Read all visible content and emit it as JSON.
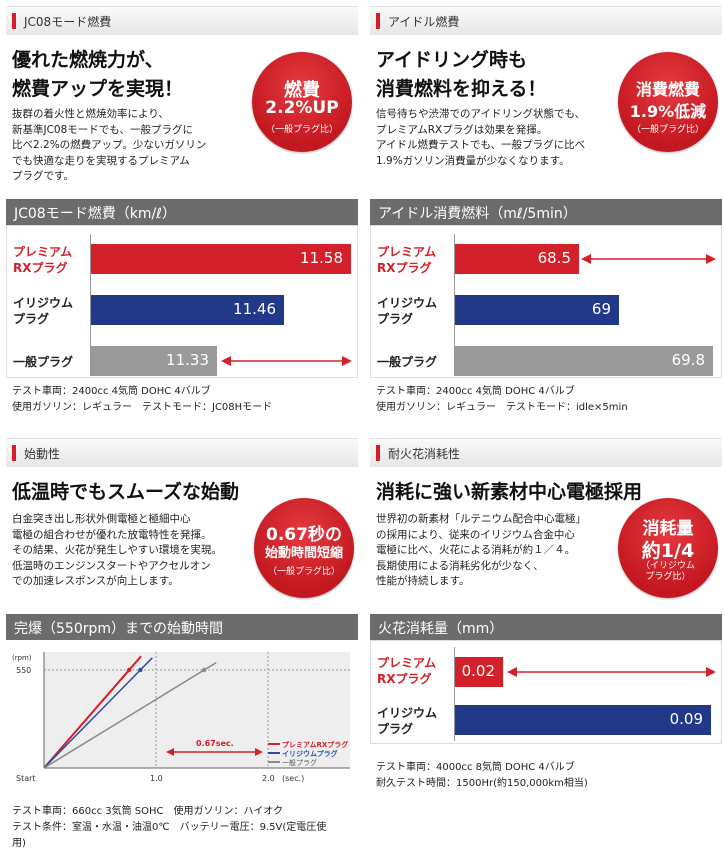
{
  "panels": {
    "p1": {
      "section": "JC08モード燃費",
      "headline": "優れた燃焼力が、\n燃費アップを実現！",
      "body": "抜群の着火性と燃焼効率により、\n新基準JC08モードでも、一般プラグに\n比べ2.2%の燃費アップ。少ないガソリン\nでも快適な走りを実現するプレミアム\nプラグです。",
      "badge": {
        "l1": "燃費",
        "l2": "2.2%UP",
        "sub": "（一般プラグ比）"
      },
      "note": "テスト車両：2400cc 4気筒 DOHC 4バルブ\n使用ガソリン：レギュラー　テストモード：JC08Hモード"
    },
    "p2": {
      "section": "アイドル燃費",
      "headline": "アイドリング時も\n消費燃料を抑える！",
      "body": "信号待ちや渋滞でのアイドリング状態でも、\nプレミアムRXプラグは効果を発揮。\nアイドル燃費テストでも、一般プラグに比べ\n1.9%ガソリン消費量が少なくなります。",
      "badge": {
        "l1": "消費燃費",
        "l2": "1.9%低減",
        "sub": "（一般プラグ比）"
      },
      "note": "テスト車両：2400cc 4気筒 DOHC 4バルブ\n使用ガソリン：レギュラー　テストモード：idle×5min"
    },
    "p3": {
      "section": "始動性",
      "headline": "低温時でもスムーズな始動",
      "body": "白金突き出し形状外側電極と極細中心\n電極の組合わせが優れた放電特性を発揮。\nその結果、火花が発生しやすい環境を実現。\n低温時のエンジンスタートやアクセルオン\nでの加速レスポンスが向上します。",
      "badge": {
        "l1": "0.67秒の",
        "l2": "始動時間短縮",
        "sub": "（一般プラグ比）"
      },
      "note": "テスト車両：660cc 3気筒 SOHC　使用ガソリン：ハイオク\nテスト条件：室温・水温・油温0℃　バッテリー電圧：9.5V(定電圧使\n用)"
    },
    "p4": {
      "section": "耐火花消耗性",
      "headline": "消耗に強い新素材中心電極採用",
      "body": "世界初の新素材「ルテニウム配合中心電極」\nの採用により、従来のイリジウム合金中心\n電極に比べ、火花による消耗が約１／４。\n長期使用による消耗劣化が少なく、\n性能が持続します。",
      "badge": {
        "l1": "消耗量",
        "l2": "約1/4",
        "sub": "（イリジウム\nプラグ比）"
      },
      "note": "テスト車両：4000cc 8気筒 DOHC 4バルブ\n耐久テスト時間：1500Hr(約150,000km相当)"
    }
  },
  "chart_data": [
    {
      "type": "bar",
      "orientation": "horizontal",
      "title": "JC08モード燃費（km/ℓ）",
      "categories": [
        "プレミアム\nRXプラグ",
        "イリジウム\nプラグ",
        "一般プラグ"
      ],
      "values": [
        11.58,
        11.46,
        11.33
      ],
      "colors": [
        "#d4202a",
        "#22398a",
        "#9a9a9a"
      ],
      "axis_min": 11.0,
      "axis_max": 11.6
    },
    {
      "type": "bar",
      "orientation": "horizontal",
      "title": "アイドル消費燃料（mℓ/5min）",
      "categories": [
        "プレミアム\nRXプラグ",
        "イリジウム\nプラグ",
        "一般プラグ"
      ],
      "values": [
        68.5,
        69.0,
        69.8
      ],
      "colors": [
        "#d4202a",
        "#22398a",
        "#9a9a9a"
      ],
      "axis_min": 67.5,
      "axis_max": 69.8
    },
    {
      "type": "line",
      "title": "完爆（550rpm）までの始動時間",
      "ylabel": "(rpm)",
      "xlabel": "(sec.)",
      "yticks": [
        "550"
      ],
      "xticks": [
        "Start",
        "1.0",
        "2.0"
      ],
      "xlim": [
        0,
        2.2
      ],
      "ylim": [
        0,
        700
      ],
      "series": [
        {
          "name": "プレミアムRXプラグ",
          "color": "#d4202a",
          "x": [
            0,
            0.76
          ],
          "y": [
            0,
            550
          ]
        },
        {
          "name": "イリジウムプラグ",
          "color": "#2a50a8",
          "x": [
            0,
            0.86
          ],
          "y": [
            0,
            550
          ]
        },
        {
          "name": "一般プラグ",
          "color": "#888888",
          "x": [
            0,
            1.43
          ],
          "y": [
            0,
            550
          ]
        }
      ],
      "annotation": "0.67sec."
    },
    {
      "type": "bar",
      "orientation": "horizontal",
      "title": "火花消耗量（mm）",
      "categories": [
        "プレミアム\nRXプラグ",
        "イリジウム\nプラグ"
      ],
      "values": [
        0.02,
        0.09
      ],
      "colors": [
        "#d4202a",
        "#22398a"
      ],
      "axis_min": 0,
      "axis_max": 0.09
    }
  ]
}
